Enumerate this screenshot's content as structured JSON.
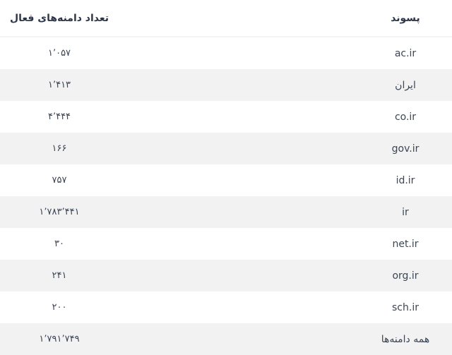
{
  "colors": {
    "row_stripe": "#f2f2f3",
    "header_text": "#2e3749",
    "cell_text": "#3c4554",
    "header_border": "#f3f4f6",
    "background": "#ffffff"
  },
  "chart_data": {
    "type": "table",
    "title": "",
    "legend_position": "none",
    "columns": [
      "پسوند",
      "تعداد دامنه‌های فعال"
    ],
    "rows_numeric": [
      {
        "suffix": "ac.ir",
        "count": 1057
      },
      {
        "suffix": "ایران",
        "count": 1413
      },
      {
        "suffix": "co.ir",
        "count": 4444
      },
      {
        "suffix": "gov.ir",
        "count": 166
      },
      {
        "suffix": "id.ir",
        "count": 757
      },
      {
        "suffix": "ir",
        "count": 1783441
      },
      {
        "suffix": "net.ir",
        "count": 30
      },
      {
        "suffix": "org.ir",
        "count": 241
      },
      {
        "suffix": "sch.ir",
        "count": 200
      },
      {
        "suffix": "همه دامنه‌ها",
        "count": 1791749
      }
    ]
  },
  "table": {
    "header": {
      "suffix": "پسوند",
      "count": "تعداد دامنه‌های فعال"
    },
    "rows": [
      {
        "suffix": "ac.ir",
        "count": "۱٬۰۵۷"
      },
      {
        "suffix": "ایران",
        "count": "۱٬۴۱۳"
      },
      {
        "suffix": "co.ir",
        "count": "۴٬۴۴۴"
      },
      {
        "suffix": "gov.ir",
        "count": "۱۶۶"
      },
      {
        "suffix": "id.ir",
        "count": "۷۵۷"
      },
      {
        "suffix": "ir",
        "count": "۱٬۷۸۳٬۴۴۱"
      },
      {
        "suffix": "net.ir",
        "count": "۳۰"
      },
      {
        "suffix": "org.ir",
        "count": "۲۴۱"
      },
      {
        "suffix": "sch.ir",
        "count": "۲۰۰"
      },
      {
        "suffix": "همه دامنه‌ها",
        "count": "۱٬۷۹۱٬۷۴۹"
      }
    ]
  }
}
